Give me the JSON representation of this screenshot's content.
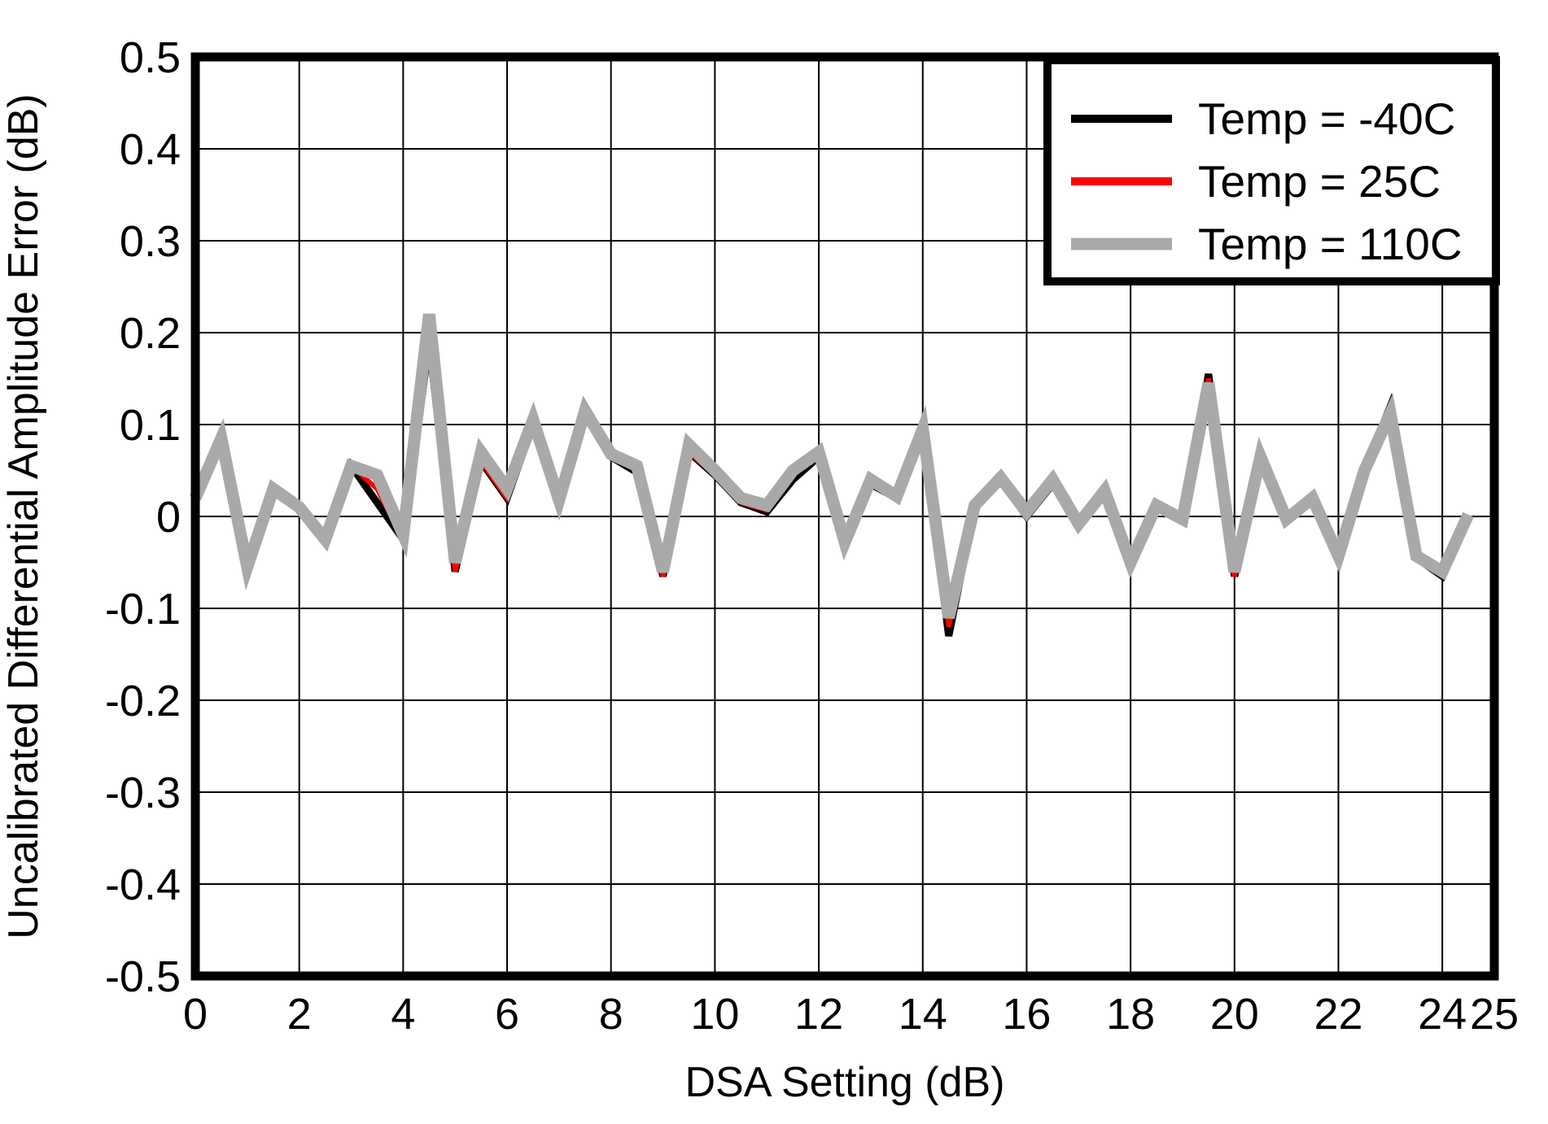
{
  "figure": {
    "x_axis_title": "DSA Setting (dB)",
    "y_axis_title": "Uncalibrated Differential Amplitude Error (dB)"
  },
  "colors": {
    "series_black": "#000000",
    "series_red": "#ff0000",
    "series_gray": "#a9a9a9",
    "grid": "#000000",
    "frame": "#000000",
    "background": "#ffffff"
  },
  "chart_data": {
    "type": "line",
    "title": "",
    "xlabel": "DSA Setting (dB)",
    "ylabel": "Uncalibrated Differential Amplitude Error (dB)",
    "xlim": [
      0,
      25
    ],
    "ylim": [
      -0.5,
      0.5
    ],
    "grid": true,
    "legend_position": "top-right",
    "x_tick_values": [
      0,
      2,
      4,
      6,
      8,
      10,
      12,
      14,
      16,
      18,
      20,
      22,
      24,
      25
    ],
    "x_tick_labels": [
      "0",
      "2",
      "4",
      "6",
      "8",
      "10",
      "12",
      "14",
      "16",
      "18",
      "20",
      "22",
      "24",
      "25"
    ],
    "y_tick_values": [
      0.5,
      0.4,
      0.3,
      0.2,
      0.1,
      0,
      -0.1,
      -0.2,
      -0.3,
      -0.4,
      -0.5
    ],
    "y_tick_labels": [
      "0.5",
      "0.4",
      "0.3",
      "0.2",
      "0.1",
      "0",
      "-0.1",
      "-0.2",
      "-0.3",
      "-0.4",
      "-0.5"
    ],
    "x_gridline_values": [
      2,
      4,
      6,
      8,
      10,
      12,
      14,
      16,
      18,
      20,
      22,
      24
    ],
    "y_gridline_values": [
      0.4,
      0.3,
      0.2,
      0.1,
      0,
      -0.1,
      -0.2,
      -0.3,
      -0.4
    ],
    "x": [
      0,
      0.5,
      1,
      1.5,
      2,
      2.5,
      3,
      3.5,
      4,
      4.5,
      5,
      5.5,
      6,
      6.5,
      7,
      7.5,
      8,
      8.5,
      9,
      9.5,
      10,
      10.5,
      11,
      11.5,
      12,
      12.5,
      13,
      13.5,
      14,
      14.5,
      15,
      15.5,
      16,
      16.5,
      17,
      17.5,
      18,
      18.5,
      19,
      19.5,
      20,
      20.5,
      21,
      21.5,
      22,
      22.5,
      23,
      23.5,
      24,
      24.5
    ],
    "series": [
      {
        "name": "Temp = -40C",
        "color": "#000000",
        "line_width": 9,
        "values": [
          0.02,
          0.08,
          -0.055,
          0.03,
          0.01,
          -0.025,
          0.055,
          0.015,
          -0.025,
          0.19,
          -0.06,
          0.06,
          0.02,
          0.1,
          0.015,
          0.11,
          0.065,
          0.048,
          -0.065,
          0.07,
          0.045,
          0.015,
          0.005,
          0.04,
          0.065,
          -0.03,
          0.035,
          0.02,
          0.09,
          -0.13,
          0.01,
          0.04,
          0.0,
          0.035,
          -0.01,
          0.025,
          -0.055,
          0.01,
          -0.005,
          0.155,
          -0.065,
          0.06,
          -0.005,
          0.02,
          -0.045,
          0.05,
          0.12,
          -0.045,
          -0.065,
          0.0
        ]
      },
      {
        "name": "Temp = 25C",
        "color": "#ff0000",
        "line_width": 6,
        "values": [
          0.02,
          0.08,
          -0.06,
          0.03,
          0.01,
          -0.025,
          0.055,
          0.03,
          -0.025,
          0.19,
          -0.06,
          0.06,
          0.02,
          0.1,
          0.01,
          0.11,
          0.065,
          0.05,
          -0.065,
          0.07,
          0.045,
          0.015,
          0.007,
          0.045,
          0.065,
          -0.03,
          0.035,
          0.02,
          0.09,
          -0.12,
          0.01,
          0.04,
          0.0,
          0.035,
          -0.01,
          0.025,
          -0.055,
          0.01,
          -0.005,
          0.15,
          -0.065,
          0.058,
          -0.005,
          0.02,
          -0.045,
          0.05,
          0.12,
          -0.045,
          -0.062,
          0.0
        ]
      },
      {
        "name": "Temp = 110C",
        "color": "#a9a9a9",
        "line_width": 15,
        "values": [
          0.02,
          0.085,
          -0.055,
          0.03,
          0.01,
          -0.025,
          0.055,
          0.045,
          -0.02,
          0.22,
          -0.05,
          0.07,
          0.03,
          0.105,
          0.018,
          0.115,
          0.068,
          0.055,
          -0.06,
          0.078,
          0.05,
          0.02,
          0.012,
          0.05,
          0.07,
          -0.028,
          0.04,
          0.022,
          0.095,
          -0.11,
          0.012,
          0.042,
          0.005,
          0.04,
          -0.008,
          0.028,
          -0.05,
          0.012,
          -0.003,
          0.145,
          -0.06,
          0.065,
          -0.003,
          0.02,
          -0.043,
          0.05,
          0.112,
          -0.043,
          -0.06,
          0.002
        ]
      }
    ]
  }
}
